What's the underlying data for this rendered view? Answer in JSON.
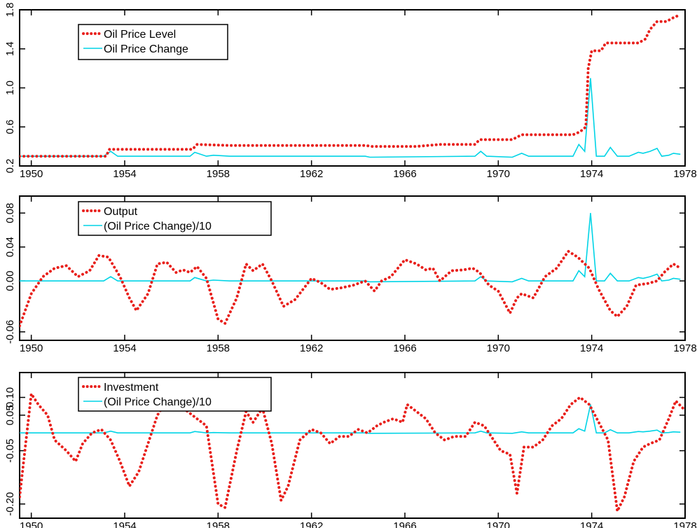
{
  "chart_data": [
    {
      "type": "line",
      "x_tick_labels": [
        "1950",
        "1954",
        "1958",
        "1962",
        "1966",
        "1970",
        "1974",
        "1978"
      ],
      "x_ticks": [
        1950,
        1954,
        1958,
        1962,
        1966,
        1970,
        1974,
        1978
      ],
      "xlim": [
        1949.5,
        1978.0
      ],
      "y_tick_labels": [
        "0.2",
        "0.6",
        "1.0",
        "1.4",
        "1.8"
      ],
      "y_ticks": [
        0.2,
        0.6,
        1.0,
        1.4,
        1.8
      ],
      "ylim": [
        0.2,
        1.8
      ],
      "legend_position": "top-left",
      "series": [
        {
          "name": "Oil Price Level",
          "style": "dotted",
          "color": "#e8201c",
          "x": [
            1949.5,
            1953.2,
            1953.35,
            1956.9,
            1957.1,
            1958.5,
            1964.3,
            1964.6,
            1966.5,
            1967.5,
            1969.0,
            1969.2,
            1970.6,
            1971.0,
            1973.2,
            1973.5,
            1973.75,
            1973.85,
            1974.0,
            1974.4,
            1974.6,
            1976.0,
            1976.3,
            1976.5,
            1976.8,
            1977.2,
            1977.5,
            1977.8
          ],
          "y": [
            0.3,
            0.3,
            0.37,
            0.37,
            0.42,
            0.41,
            0.41,
            0.4,
            0.4,
            0.42,
            0.42,
            0.47,
            0.47,
            0.52,
            0.52,
            0.55,
            0.6,
            1.2,
            1.38,
            1.38,
            1.46,
            1.46,
            1.5,
            1.6,
            1.68,
            1.68,
            1.72,
            1.75
          ]
        },
        {
          "name": "Oil Price Change",
          "style": "solid",
          "color": "#00d4e6",
          "x": [
            1949.5,
            1953.1,
            1953.4,
            1953.7,
            1956.8,
            1957.0,
            1957.5,
            1957.8,
            1958.5,
            1959.0,
            1964.3,
            1964.5,
            1969.0,
            1969.25,
            1969.5,
            1970.6,
            1971.0,
            1971.3,
            1973.2,
            1973.45,
            1973.7,
            1973.95,
            1974.2,
            1974.55,
            1974.8,
            1975.1,
            1975.6,
            1976.0,
            1976.2,
            1976.5,
            1976.8,
            1977.0,
            1977.3,
            1977.5,
            1977.8
          ],
          "y": [
            0.3,
            0.3,
            0.35,
            0.3,
            0.3,
            0.34,
            0.3,
            0.31,
            0.3,
            0.3,
            0.3,
            0.29,
            0.3,
            0.35,
            0.3,
            0.29,
            0.33,
            0.3,
            0.3,
            0.42,
            0.35,
            1.1,
            0.3,
            0.3,
            0.39,
            0.3,
            0.3,
            0.34,
            0.33,
            0.35,
            0.38,
            0.3,
            0.31,
            0.33,
            0.32
          ]
        }
      ]
    },
    {
      "type": "line",
      "x_tick_labels": [
        "1950",
        "1954",
        "1958",
        "1962",
        "1966",
        "1970",
        "1974",
        "1978"
      ],
      "x_ticks": [
        1950,
        1954,
        1958,
        1962,
        1966,
        1970,
        1974,
        1978
      ],
      "xlim": [
        1949.5,
        1978.0
      ],
      "y_tick_labels": [
        "-0.06",
        "0.00",
        "0.04",
        "0.08"
      ],
      "y_ticks": [
        -0.06,
        0.0,
        0.04,
        0.08
      ],
      "ylim": [
        -0.07,
        0.1
      ],
      "legend_position": "top-left",
      "series": [
        {
          "name": "Output",
          "style": "dotted",
          "color": "#e8201c",
          "x": [
            1949.5,
            1950.0,
            1950.5,
            1951.0,
            1951.5,
            1952.0,
            1952.5,
            1952.9,
            1953.3,
            1953.8,
            1954.2,
            1954.5,
            1955.0,
            1955.4,
            1955.8,
            1956.2,
            1956.5,
            1956.8,
            1957.1,
            1957.5,
            1958.0,
            1958.3,
            1958.8,
            1959.2,
            1959.5,
            1959.9,
            1960.3,
            1960.8,
            1961.3,
            1962.0,
            1962.4,
            1962.8,
            1963.3,
            1963.8,
            1964.3,
            1964.7,
            1965.0,
            1965.4,
            1966.0,
            1966.5,
            1966.9,
            1967.2,
            1967.5,
            1968.0,
            1968.5,
            1968.9,
            1969.2,
            1969.6,
            1970.0,
            1970.5,
            1970.8,
            1971.0,
            1971.5,
            1972.0,
            1972.5,
            1973.0,
            1973.4,
            1973.9,
            1974.3,
            1974.8,
            1975.1,
            1975.5,
            1975.9,
            1976.4,
            1976.8,
            1977.1,
            1977.5,
            1977.8
          ],
          "y": [
            -0.053,
            -0.015,
            0.005,
            0.015,
            0.018,
            0.005,
            0.012,
            0.03,
            0.028,
            0.005,
            -0.02,
            -0.035,
            -0.015,
            0.02,
            0.022,
            0.01,
            0.013,
            0.01,
            0.017,
            0.003,
            -0.045,
            -0.05,
            -0.02,
            0.02,
            0.012,
            0.02,
            0.0,
            -0.03,
            -0.022,
            0.003,
            -0.002,
            -0.01,
            -0.008,
            -0.005,
            0.0,
            -0.012,
            0.0,
            0.005,
            0.025,
            0.02,
            0.013,
            0.015,
            0.0,
            0.012,
            0.013,
            0.015,
            0.01,
            -0.005,
            -0.012,
            -0.038,
            -0.02,
            -0.015,
            -0.02,
            0.005,
            0.015,
            0.035,
            0.028,
            0.015,
            -0.01,
            -0.035,
            -0.042,
            -0.03,
            -0.005,
            -0.003,
            0.0,
            0.01,
            0.02,
            0.015
          ]
        },
        {
          "name": "(Oil Price Change)/10",
          "style": "solid",
          "color": "#00d4e6",
          "x": [
            1949.5,
            1953.1,
            1953.4,
            1953.7,
            1956.8,
            1957.0,
            1957.5,
            1957.8,
            1958.5,
            1959.0,
            1964.3,
            1964.5,
            1969.0,
            1969.25,
            1969.5,
            1970.6,
            1971.0,
            1971.3,
            1973.2,
            1973.45,
            1973.7,
            1973.95,
            1974.2,
            1974.55,
            1974.8,
            1975.1,
            1975.6,
            1976.0,
            1976.2,
            1976.5,
            1976.8,
            1977.0,
            1977.3,
            1977.5,
            1977.8
          ],
          "y": [
            0.0,
            0.0,
            0.005,
            0.0,
            0.0,
            0.004,
            0.0,
            0.001,
            0.0,
            0.0,
            0.0,
            -0.001,
            0.0,
            0.005,
            0.0,
            -0.001,
            0.003,
            0.0,
            0.0,
            0.012,
            0.005,
            0.08,
            0.0,
            0.0,
            0.009,
            0.0,
            0.0,
            0.004,
            0.003,
            0.005,
            0.008,
            0.0,
            0.001,
            0.003,
            0.002
          ]
        }
      ]
    },
    {
      "type": "line",
      "x_tick_labels": [
        "1950",
        "1954",
        "1958",
        "1962",
        "1966",
        "1970",
        "1974",
        "1978"
      ],
      "x_ticks": [
        1950,
        1954,
        1958,
        1962,
        1966,
        1970,
        1974,
        1978
      ],
      "xlim": [
        1949.5,
        1978.0
      ],
      "y_tick_labels": [
        "-0.20",
        "-0.05",
        "0.05",
        "0.10"
      ],
      "y_ticks": [
        -0.2,
        -0.05,
        0.05,
        0.1
      ],
      "ylim": [
        -0.24,
        0.17
      ],
      "legend_position": "top-left",
      "series": [
        {
          "name": "Investment",
          "style": "dotted",
          "color": "#e8201c",
          "x": [
            1949.5,
            1950.0,
            1950.3,
            1950.7,
            1951.0,
            1951.5,
            1951.9,
            1952.2,
            1952.6,
            1953.0,
            1953.4,
            1953.8,
            1954.2,
            1954.6,
            1955.0,
            1955.4,
            1955.9,
            1956.3,
            1956.7,
            1957.1,
            1957.5,
            1958.0,
            1958.3,
            1958.8,
            1959.2,
            1959.5,
            1959.9,
            1960.3,
            1960.7,
            1961.0,
            1961.5,
            1962.0,
            1962.4,
            1962.8,
            1963.2,
            1963.6,
            1964.0,
            1964.4,
            1964.8,
            1965.1,
            1965.5,
            1965.9,
            1966.1,
            1966.5,
            1966.9,
            1967.3,
            1967.7,
            1968.1,
            1968.6,
            1969.0,
            1969.4,
            1969.7,
            1970.1,
            1970.5,
            1970.8,
            1971.1,
            1971.5,
            1971.9,
            1972.3,
            1972.7,
            1973.1,
            1973.5,
            1973.9,
            1974.3,
            1974.7,
            1975.1,
            1975.4,
            1975.8,
            1976.2,
            1976.5,
            1976.9,
            1977.3,
            1977.6,
            1977.9
          ],
          "y": [
            -0.18,
            0.11,
            0.08,
            0.05,
            -0.02,
            -0.05,
            -0.08,
            -0.03,
            0.0,
            0.01,
            -0.02,
            -0.08,
            -0.15,
            -0.11,
            -0.03,
            0.05,
            0.1,
            0.08,
            0.06,
            0.04,
            0.02,
            -0.2,
            -0.21,
            -0.05,
            0.06,
            0.03,
            0.07,
            -0.03,
            -0.19,
            -0.15,
            -0.02,
            0.01,
            0.0,
            -0.03,
            -0.01,
            -0.01,
            0.01,
            0.0,
            0.02,
            0.03,
            0.04,
            0.03,
            0.08,
            0.06,
            0.04,
            0.0,
            -0.02,
            -0.01,
            -0.01,
            0.03,
            0.02,
            -0.01,
            -0.05,
            -0.06,
            -0.17,
            -0.04,
            -0.04,
            -0.02,
            0.02,
            0.04,
            0.08,
            0.1,
            0.08,
            0.03,
            -0.02,
            -0.22,
            -0.18,
            -0.08,
            -0.04,
            -0.03,
            -0.02,
            0.04,
            0.09,
            0.07
          ]
        },
        {
          "name": "(Oil Price Change)/10",
          "style": "solid",
          "color": "#00d4e6",
          "x": [
            1949.5,
            1953.1,
            1953.4,
            1953.7,
            1956.8,
            1957.0,
            1957.5,
            1957.8,
            1958.5,
            1959.0,
            1964.3,
            1964.5,
            1969.0,
            1969.25,
            1969.5,
            1970.6,
            1971.0,
            1971.3,
            1973.2,
            1973.45,
            1973.7,
            1973.95,
            1974.2,
            1974.55,
            1974.8,
            1975.1,
            1975.6,
            1976.0,
            1976.2,
            1976.5,
            1976.8,
            1977.0,
            1977.3,
            1977.5,
            1977.8
          ],
          "y": [
            0.0,
            0.0,
            0.005,
            0.0,
            0.0,
            0.004,
            0.0,
            0.001,
            0.0,
            0.0,
            0.0,
            -0.001,
            0.0,
            0.005,
            0.0,
            -0.001,
            0.003,
            0.0,
            0.0,
            0.012,
            0.005,
            0.08,
            0.0,
            0.0,
            0.009,
            0.0,
            0.0,
            0.004,
            0.003,
            0.005,
            0.008,
            0.0,
            0.001,
            0.003,
            0.002
          ]
        }
      ]
    }
  ]
}
